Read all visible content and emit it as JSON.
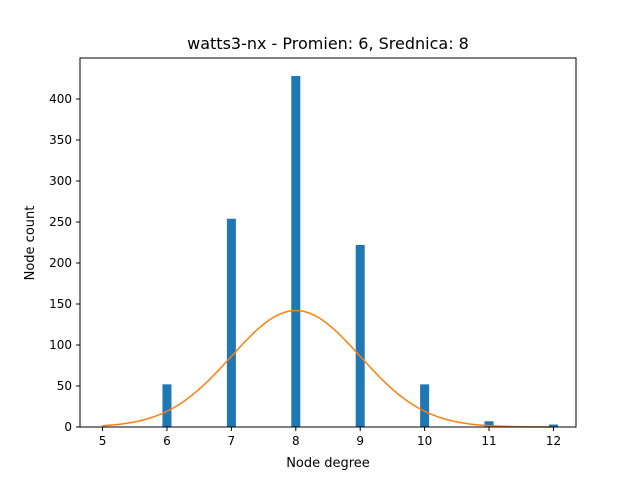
{
  "chart_data": {
    "type": "bar",
    "title": "watts3-nx - Promien: 6, Srednica: 8",
    "xlabel": "Node degree",
    "ylabel": "Node count",
    "xlim": [
      4.65,
      12.35
    ],
    "ylim": [
      0,
      450
    ],
    "x_ticks": [
      5,
      6,
      7,
      8,
      9,
      10,
      11,
      12
    ],
    "y_ticks": [
      0,
      50,
      100,
      150,
      200,
      250,
      300,
      350,
      400
    ],
    "bar_width": 0.14,
    "grid": false,
    "legend": "none",
    "series": [
      {
        "type": "bar",
        "color": "#1f77b4",
        "x": [
          6,
          7,
          8,
          9,
          10,
          11,
          12
        ],
        "values": [
          52,
          254,
          428,
          222,
          52,
          7,
          3
        ]
      },
      {
        "type": "line",
        "color": "#ff7f0e",
        "x": [
          5,
          5.5,
          6,
          6.5,
          7,
          7.5,
          8,
          8.5,
          9,
          9.5,
          10,
          10.5,
          11,
          11.5,
          12
        ],
        "values": [
          2,
          7,
          20,
          46,
          86,
          125,
          142,
          125,
          86,
          46,
          20,
          7,
          2,
          0.5,
          0.1
        ]
      }
    ]
  }
}
